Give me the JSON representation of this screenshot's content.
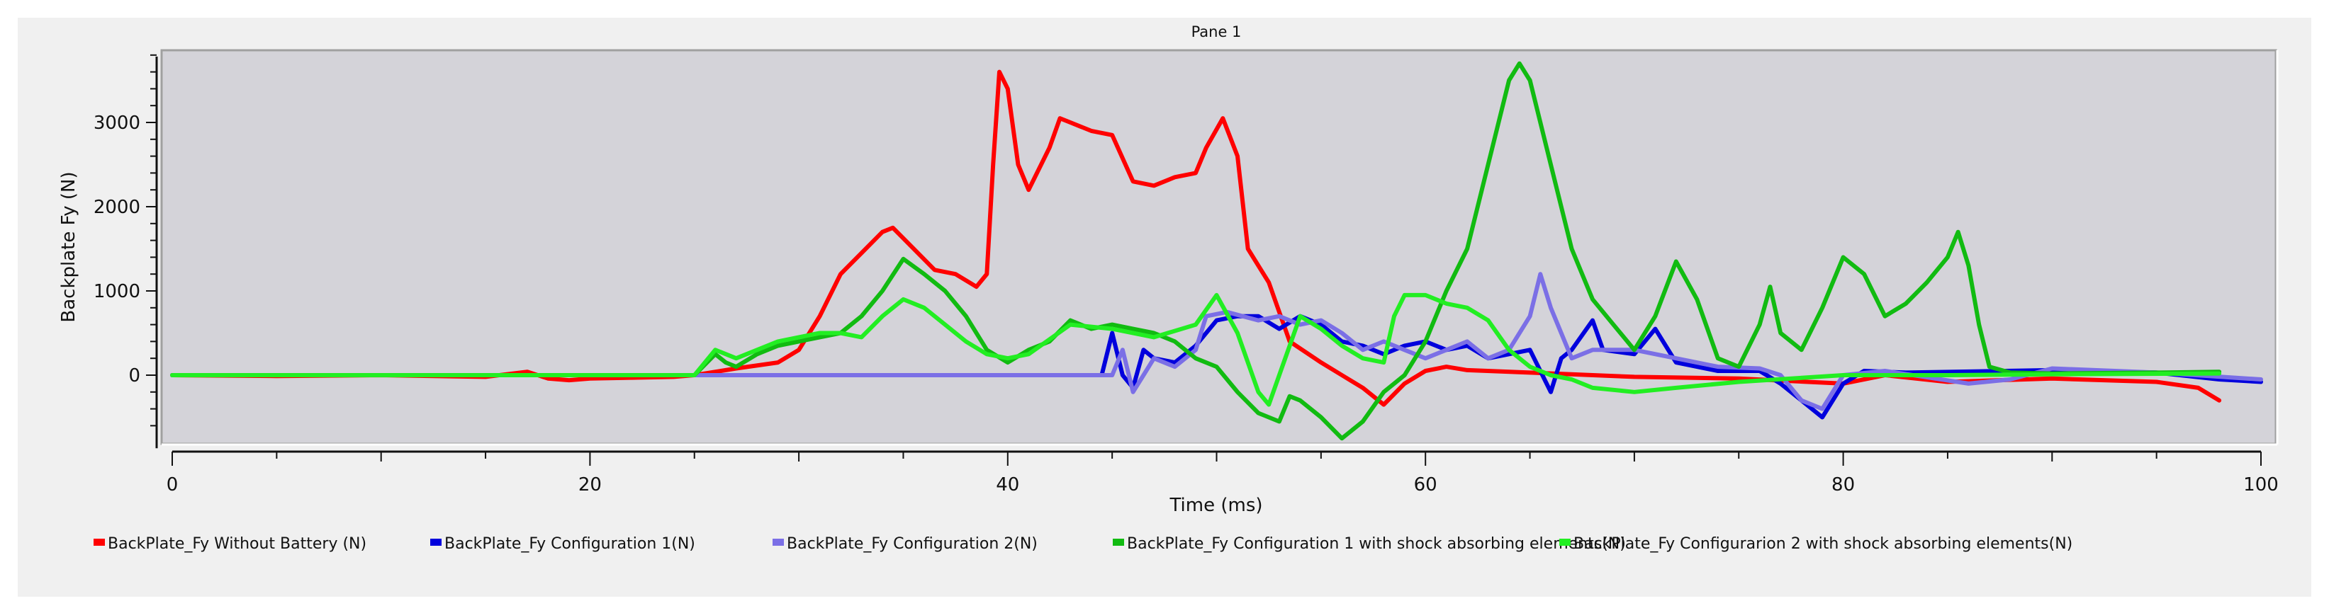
{
  "pane_title": "Pane 1",
  "chart_data": {
    "type": "line",
    "title": "Pane 1",
    "xlabel": "Time (ms)",
    "ylabel": "Backplate Fy (N)",
    "xlim": [
      0,
      100
    ],
    "ylim": [
      -800,
      3850
    ],
    "xticks": [
      0,
      20,
      40,
      60,
      80,
      100
    ],
    "yticks": [
      0,
      1000,
      2000,
      3000
    ],
    "grid": false,
    "legend_position": "bottom",
    "background": "#d4d3d9",
    "series": [
      {
        "name": "BackPlate_Fy Without Battery (N)",
        "color": "#ff0000",
        "x": [
          0,
          5,
          10,
          15,
          17,
          18,
          19,
          20,
          22,
          24,
          25,
          27,
          29,
          30,
          31,
          32,
          33,
          34,
          34.5,
          35.5,
          36.5,
          37.5,
          38.5,
          39,
          39.3,
          39.6,
          40,
          40.5,
          41,
          42,
          42.5,
          43,
          44,
          45,
          46,
          47,
          48,
          49,
          49.5,
          50.3,
          51,
          51.5,
          52.5,
          53.5,
          55,
          56,
          57,
          58,
          59,
          60,
          61,
          62,
          65,
          70,
          75,
          80,
          82,
          85,
          90,
          95,
          97,
          98
        ],
        "y": [
          0,
          -10,
          0,
          -20,
          40,
          -40,
          -60,
          -40,
          -30,
          -20,
          0,
          80,
          150,
          300,
          700,
          1200,
          1450,
          1700,
          1750,
          1500,
          1250,
          1200,
          1050,
          1200,
          2500,
          3600,
          3400,
          2500,
          2200,
          2700,
          3050,
          3000,
          2900,
          2850,
          2300,
          2250,
          2350,
          2400,
          2700,
          3050,
          2600,
          1500,
          1100,
          400,
          150,
          0,
          -150,
          -350,
          -100,
          50,
          100,
          60,
          30,
          -20,
          -40,
          -100,
          0,
          -80,
          -40,
          -80,
          -150,
          -300
        ]
      },
      {
        "name": "BackPlate_Fy Configuration 1(N)",
        "color": "#0000dd",
        "x": [
          0,
          44.5,
          45,
          45.5,
          46,
          46.5,
          47,
          48,
          49,
          50,
          51,
          52,
          53,
          54,
          55,
          56,
          57,
          58,
          59,
          60,
          61,
          62,
          63,
          64,
          65,
          66,
          66.5,
          67,
          68,
          68.5,
          70,
          71,
          72,
          74,
          76,
          77,
          78,
          79,
          80,
          81,
          83,
          90,
          95,
          98,
          100
        ],
        "y": [
          0,
          0,
          500,
          0,
          -150,
          300,
          200,
          150,
          350,
          650,
          700,
          700,
          550,
          700,
          600,
          400,
          350,
          250,
          350,
          400,
          300,
          350,
          200,
          250,
          300,
          -200,
          200,
          300,
          650,
          300,
          250,
          550,
          150,
          50,
          50,
          -100,
          -300,
          -500,
          -100,
          50,
          30,
          60,
          30,
          -50,
          -80
        ]
      },
      {
        "name": "BackPlate_Fy Configuration 2(N)",
        "color": "#7b6fe6",
        "x": [
          0,
          45,
          45.5,
          46,
          46.5,
          47,
          48,
          49,
          49.5,
          50.5,
          52,
          53,
          54,
          55,
          56,
          57,
          58,
          59,
          60,
          61,
          62,
          63,
          64,
          65,
          65.5,
          66,
          67,
          68,
          70,
          72,
          74,
          76,
          77,
          78,
          79,
          80,
          82,
          86,
          88,
          90,
          95,
          100
        ],
        "y": [
          0,
          0,
          300,
          -200,
          0,
          200,
          100,
          300,
          700,
          750,
          650,
          700,
          600,
          650,
          500,
          300,
          400,
          300,
          200,
          300,
          400,
          200,
          300,
          700,
          1200,
          800,
          200,
          300,
          300,
          200,
          100,
          80,
          0,
          -300,
          -400,
          0,
          50,
          -100,
          -50,
          80,
          30,
          -50
        ]
      },
      {
        "name": "BackPlate_Fy Configuration 1 with shock absorbing elements(N)",
        "color": "#11bb11",
        "x": [
          0,
          25,
          26,
          26.5,
          27,
          28,
          29,
          30,
          31,
          32,
          33,
          34,
          35,
          36,
          37,
          38,
          39,
          40,
          41,
          42,
          43,
          44,
          45,
          46,
          47,
          48,
          49,
          50,
          51,
          52,
          53,
          53.5,
          54,
          55,
          56,
          57,
          58,
          59,
          60,
          61,
          62,
          63,
          64,
          64.5,
          65,
          66,
          67,
          68,
          69,
          70,
          71,
          72,
          73,
          74,
          75,
          76,
          76.5,
          77,
          78,
          79,
          80,
          81,
          82,
          83,
          84,
          85,
          85.5,
          86,
          86.5,
          87,
          88,
          90,
          95,
          98
        ],
        "y": [
          0,
          0,
          250,
          150,
          100,
          250,
          350,
          400,
          450,
          500,
          700,
          1000,
          1380,
          1200,
          1000,
          700,
          300,
          150,
          300,
          400,
          650,
          550,
          600,
          550,
          500,
          400,
          200,
          100,
          -200,
          -450,
          -550,
          -250,
          -300,
          -500,
          -750,
          -550,
          -200,
          0,
          400,
          1000,
          1500,
          2500,
          3500,
          3700,
          3500,
          2500,
          1500,
          900,
          600,
          300,
          700,
          1350,
          900,
          200,
          100,
          600,
          1050,
          500,
          300,
          800,
          1400,
          1200,
          700,
          850,
          1100,
          1400,
          1700,
          1300,
          600,
          100,
          30,
          20,
          30,
          40
        ]
      },
      {
        "name": "BackPlate_Fy Configurarion 2 with shock absorbing elements(N)",
        "color": "#22ee22",
        "x": [
          0,
          25,
          26,
          27,
          28,
          29,
          30,
          31,
          32,
          33,
          34,
          35,
          36,
          37,
          38,
          39,
          40,
          41,
          43,
          45,
          47,
          49,
          50,
          51,
          52,
          52.5,
          53,
          54,
          55,
          56,
          57,
          58,
          58.5,
          59,
          60,
          61,
          62,
          63,
          64,
          65,
          66,
          67,
          68,
          70,
          72,
          75,
          80,
          85,
          90,
          98
        ],
        "y": [
          0,
          0,
          300,
          200,
          300,
          400,
          450,
          500,
          500,
          450,
          700,
          900,
          800,
          600,
          400,
          250,
          200,
          250,
          600,
          550,
          450,
          600,
          950,
          500,
          -200,
          -350,
          0,
          700,
          550,
          350,
          200,
          150,
          700,
          950,
          950,
          850,
          800,
          650,
          300,
          100,
          0,
          -50,
          -150,
          -200,
          -150,
          -80,
          0,
          0,
          10,
          20
        ]
      }
    ]
  }
}
